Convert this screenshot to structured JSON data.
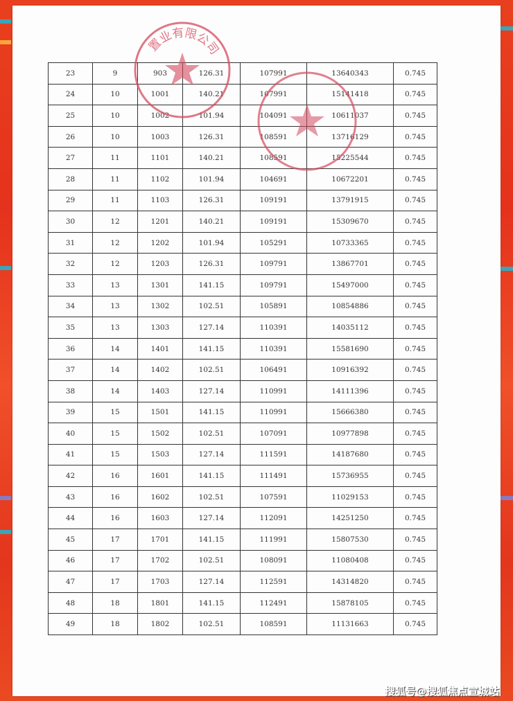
{
  "document": {
    "columns_count": 7,
    "rows": [
      [
        "23",
        "9",
        "903",
        "126.31",
        "107991",
        "13640343",
        "0.745"
      ],
      [
        "24",
        "10",
        "1001",
        "140.21",
        "107991",
        "15141418",
        "0.745"
      ],
      [
        "25",
        "10",
        "1002",
        "101.94",
        "104091",
        "10611037",
        "0.745"
      ],
      [
        "26",
        "10",
        "1003",
        "126.31",
        "108591",
        "13716129",
        "0.745"
      ],
      [
        "27",
        "11",
        "1101",
        "140.21",
        "108591",
        "15225544",
        "0.745"
      ],
      [
        "28",
        "11",
        "1102",
        "101.94",
        "104691",
        "10672201",
        "0.745"
      ],
      [
        "29",
        "11",
        "1103",
        "126.31",
        "109191",
        "13791915",
        "0.745"
      ],
      [
        "30",
        "12",
        "1201",
        "140.21",
        "109191",
        "15309670",
        "0.745"
      ],
      [
        "31",
        "12",
        "1202",
        "101.94",
        "105291",
        "10733365",
        "0.745"
      ],
      [
        "32",
        "12",
        "1203",
        "126.31",
        "109791",
        "13867701",
        "0.745"
      ],
      [
        "33",
        "13",
        "1301",
        "141.15",
        "109791",
        "15497000",
        "0.745"
      ],
      [
        "34",
        "13",
        "1302",
        "102.51",
        "105891",
        "10854886",
        "0.745"
      ],
      [
        "35",
        "13",
        "1303",
        "127.14",
        "110391",
        "14035112",
        "0.745"
      ],
      [
        "36",
        "14",
        "1401",
        "141.15",
        "110391",
        "15581690",
        "0.745"
      ],
      [
        "37",
        "14",
        "1402",
        "102.51",
        "106491",
        "10916392",
        "0.745"
      ],
      [
        "38",
        "14",
        "1403",
        "127.14",
        "110991",
        "14111396",
        "0.745"
      ],
      [
        "39",
        "15",
        "1501",
        "141.15",
        "110991",
        "15666380",
        "0.745"
      ],
      [
        "40",
        "15",
        "1502",
        "102.51",
        "107091",
        "10977898",
        "0.745"
      ],
      [
        "41",
        "15",
        "1503",
        "127.14",
        "111591",
        "14187680",
        "0.745"
      ],
      [
        "42",
        "16",
        "1601",
        "141.15",
        "111491",
        "15736955",
        "0.745"
      ],
      [
        "43",
        "16",
        "1602",
        "102.51",
        "107591",
        "11029153",
        "0.745"
      ],
      [
        "44",
        "16",
        "1603",
        "127.14",
        "112091",
        "14251250",
        "0.745"
      ],
      [
        "45",
        "17",
        "1701",
        "141.15",
        "111991",
        "15807530",
        "0.745"
      ],
      [
        "46",
        "17",
        "1702",
        "102.51",
        "108091",
        "11080408",
        "0.745"
      ],
      [
        "47",
        "17",
        "1703",
        "127.14",
        "112591",
        "14314820",
        "0.745"
      ],
      [
        "48",
        "18",
        "1801",
        "141.15",
        "112491",
        "15878105",
        "0.745"
      ],
      [
        "49",
        "18",
        "1802",
        "102.51",
        "108591",
        "11131663",
        "0.745"
      ]
    ]
  },
  "stamps": [
    {
      "text": "置业有限公司",
      "color": "#d4495e"
    },
    {
      "text": "",
      "color": "#d4495e"
    }
  ],
  "watermark": "搜狐号@搜狐焦点宣城站",
  "colors": {
    "border": "#e5321c",
    "paper": "#fdfdfd"
  }
}
